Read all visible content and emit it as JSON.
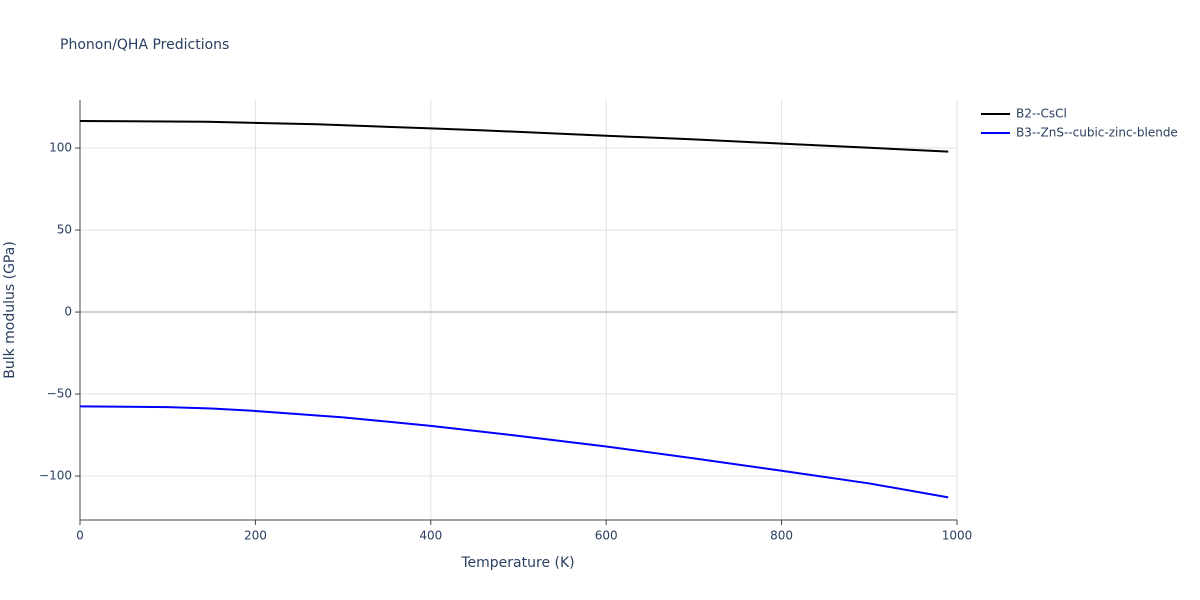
{
  "chart_data": {
    "type": "line",
    "title": "Phonon/QHA Predictions",
    "x_label": "Temperature (K)",
    "y_label": "Bulk modulus (GPa)",
    "xlim": [
      0,
      1000
    ],
    "xticks": [
      0,
      200,
      400,
      600,
      800,
      1000
    ],
    "ylim": [
      -126.8,
      129.3
    ],
    "yticks": [
      {
        "value": -100,
        "label": "−100"
      },
      {
        "value": -50,
        "label": "−50"
      },
      0,
      50,
      100
    ],
    "grid": true,
    "legend": "right",
    "series": [
      {
        "name": "B2--CsCl",
        "color": "#000000",
        "x": [
          0,
          145,
          270,
          400,
          460,
          600,
          700,
          800,
          900,
          990
        ],
        "values": [
          116.5,
          116,
          114.5,
          112,
          110.8,
          107.5,
          105.3,
          102.7,
          100.2,
          97.8
        ]
      },
      {
        "name": "B3--ZnS--cubic-zinc-blende",
        "color": "#0000ff",
        "x": [
          0,
          100,
          150,
          200,
          300,
          400,
          500,
          600,
          700,
          800,
          900,
          990
        ],
        "values": [
          -57.5,
          -58,
          -58.8,
          -60.3,
          -64.2,
          -69.4,
          -75.5,
          -82,
          -89.2,
          -96.8,
          -104.5,
          -113
        ]
      }
    ]
  }
}
